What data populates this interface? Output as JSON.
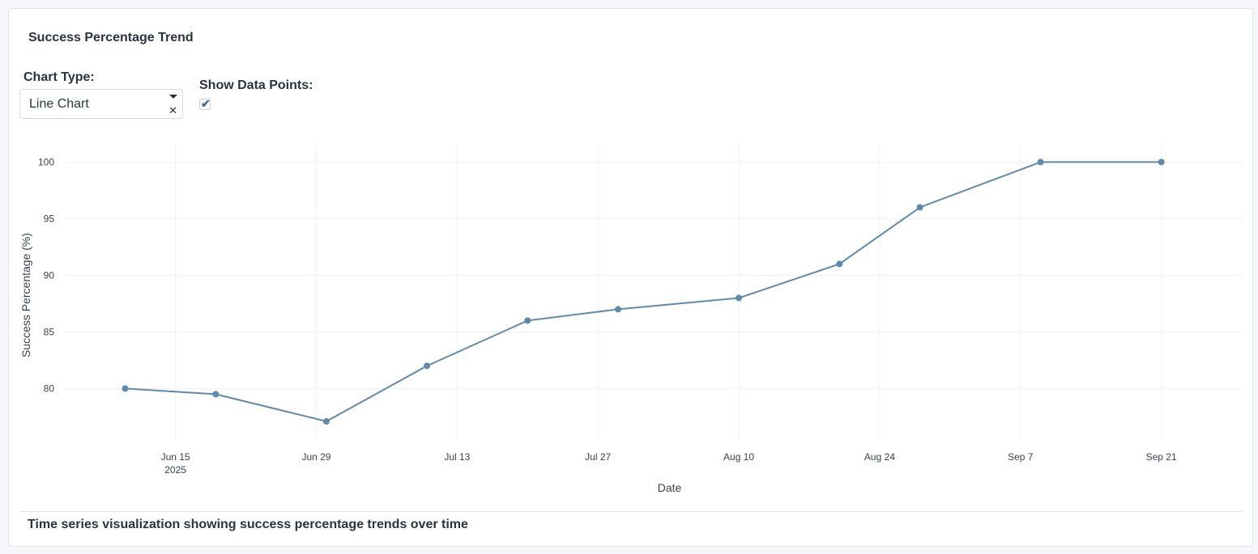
{
  "card": {
    "title": "Success Percentage Trend",
    "caption": "Time series visualization showing success percentage trends over time"
  },
  "controls": {
    "chart_type_label": "Chart Type:",
    "chart_type_value": "Line Chart",
    "show_points_label": "Show Data Points:",
    "show_points_checked": true
  },
  "colors": {
    "series": "#5f8aab",
    "grid": "#eef1f4"
  },
  "chart_data": {
    "type": "line",
    "title": "",
    "xlabel": "Date",
    "ylabel": "Success Percentage (%)",
    "x_ticks": [
      {
        "date": "2025-06-15",
        "label": "Jun 15",
        "sublabel": "2025"
      },
      {
        "date": "2025-06-29",
        "label": "Jun 29",
        "sublabel": ""
      },
      {
        "date": "2025-07-13",
        "label": "Jul 13",
        "sublabel": ""
      },
      {
        "date": "2025-07-27",
        "label": "Jul 27",
        "sublabel": ""
      },
      {
        "date": "2025-08-10",
        "label": "Aug 10",
        "sublabel": ""
      },
      {
        "date": "2025-08-24",
        "label": "Aug 24",
        "sublabel": ""
      },
      {
        "date": "2025-09-07",
        "label": "Sep 7",
        "sublabel": ""
      },
      {
        "date": "2025-09-21",
        "label": "Sep 21",
        "sublabel": ""
      }
    ],
    "y_ticks": [
      80,
      85,
      90,
      95,
      100
    ],
    "ylim": [
      75.6,
      101.6
    ],
    "xlim": [
      "2025-06-04",
      "2025-09-29"
    ],
    "grid": true,
    "show_points": true,
    "series": [
      {
        "x": [
          "2025-06-10",
          "2025-06-19",
          "2025-06-30",
          "2025-07-10",
          "2025-07-20",
          "2025-07-29",
          "2025-08-10",
          "2025-08-20",
          "2025-08-28",
          "2025-09-09",
          "2025-09-21"
        ],
        "y": [
          80,
          79.5,
          77.1,
          82,
          86,
          87,
          88,
          91,
          96,
          100,
          100
        ]
      }
    ]
  }
}
